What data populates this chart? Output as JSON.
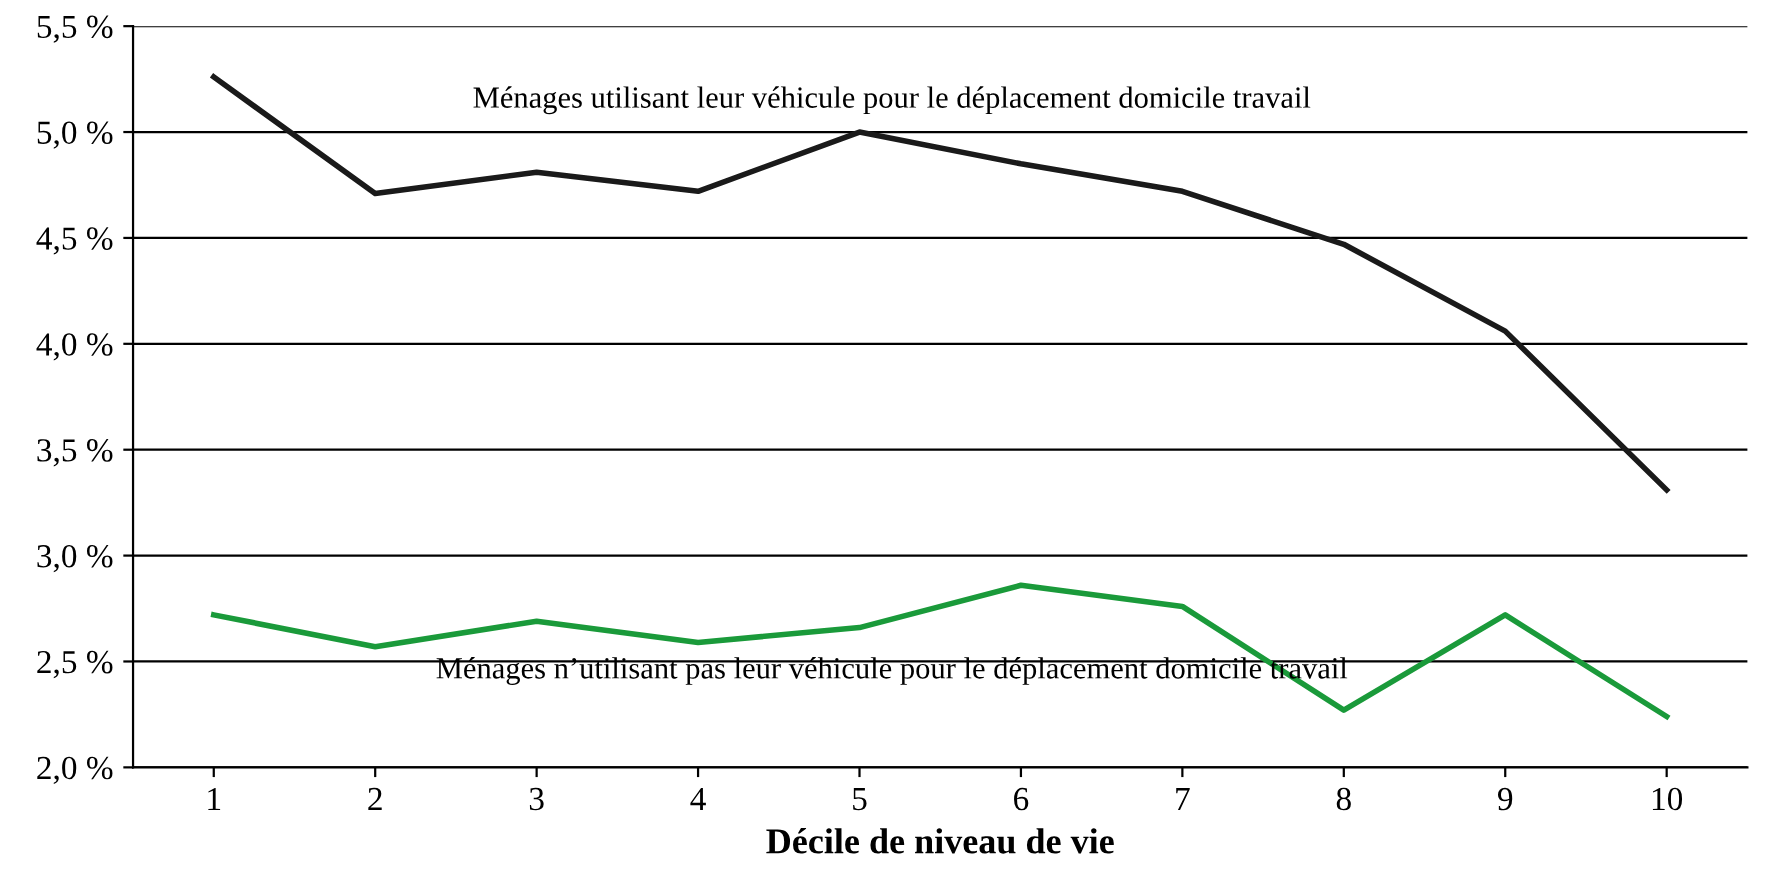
{
  "chart_data": {
    "type": "line",
    "xlabel": "Décile de niveau de vie",
    "categories": [
      "1",
      "2",
      "3",
      "4",
      "5",
      "6",
      "7",
      "8",
      "9",
      "10"
    ],
    "series": [
      {
        "name": "Ménages utilisant leur véhicule pour le déplacement domicile travail",
        "color": "#1a1a1a",
        "values": [
          5.26,
          4.71,
          4.81,
          4.72,
          5.0,
          4.85,
          4.72,
          4.47,
          4.06,
          3.31
        ]
      },
      {
        "name": "Ménages n’utilisant pas leur véhicule pour le déplacement domicile travail",
        "color": "#1a9a3a",
        "values": [
          2.72,
          2.57,
          2.69,
          2.59,
          2.66,
          2.86,
          2.76,
          2.27,
          2.72,
          2.24
        ]
      }
    ],
    "ylim": [
      2.0,
      5.5
    ],
    "yticks": [
      {
        "value": 2.0,
        "label": "2,0 %"
      },
      {
        "value": 2.5,
        "label": "2,5 %"
      },
      {
        "value": 3.0,
        "label": "3,0 %"
      },
      {
        "value": 3.5,
        "label": "3,5 %"
      },
      {
        "value": 4.0,
        "label": "4,0 %"
      },
      {
        "value": 4.5,
        "label": "4,5 %"
      },
      {
        "value": 5.0,
        "label": "5,0 %"
      },
      {
        "value": 5.5,
        "label": "5,5 %"
      }
    ],
    "grid": "y",
    "legend": false,
    "marker": "none",
    "line_style": "solid"
  }
}
